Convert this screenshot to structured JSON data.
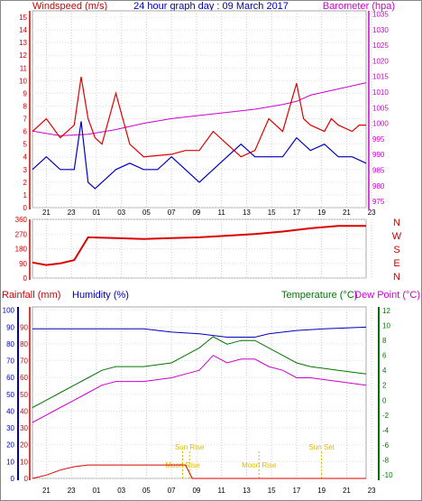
{
  "header": {
    "left_title": "Windspeed (m/s)",
    "center_title": "24 hour graph day : 09 March 2017",
    "right_title": "Barometer (hpa)"
  },
  "time_ticks": [
    "21",
    "23",
    "01",
    "03",
    "05",
    "07",
    "09",
    "11",
    "13",
    "15",
    "17",
    "19",
    "21",
    "23"
  ],
  "wind_panel": {
    "left_ticks": [
      "0",
      "1",
      "2",
      "3",
      "4",
      "5",
      "6",
      "7",
      "8",
      "9",
      "10",
      "11",
      "12",
      "13",
      "14",
      "15"
    ],
    "right_ticks": [
      "975",
      "980",
      "985",
      "990",
      "995",
      "1000",
      "1005",
      "1010",
      "1015",
      "1020",
      "1025",
      "1030",
      "1035"
    ],
    "series": [
      {
        "color": "#dd0000",
        "points": [
          [
            0,
            6
          ],
          [
            1,
            7
          ],
          [
            2,
            5.5
          ],
          [
            3,
            6.5
          ],
          [
            3.5,
            10.3
          ],
          [
            4,
            7
          ],
          [
            4.5,
            5.5
          ],
          [
            5,
            5
          ],
          [
            6,
            9
          ],
          [
            6.5,
            7
          ],
          [
            7,
            5
          ],
          [
            8,
            4
          ],
          [
            10,
            4.2
          ],
          [
            11,
            4.5
          ],
          [
            12,
            4.5
          ],
          [
            13,
            6
          ],
          [
            14,
            5
          ],
          [
            15,
            4
          ],
          [
            16,
            4.5
          ],
          [
            17,
            7
          ],
          [
            18,
            6
          ],
          [
            19,
            9.8
          ],
          [
            19.5,
            7
          ],
          [
            20,
            6.5
          ],
          [
            21,
            6
          ],
          [
            21.5,
            7
          ],
          [
            22,
            6.5
          ],
          [
            23,
            6
          ],
          [
            23.5,
            6.5
          ],
          [
            24,
            6.5
          ]
        ]
      },
      {
        "color": "#0000bb",
        "points": [
          [
            0,
            3
          ],
          [
            1,
            4
          ],
          [
            2,
            3
          ],
          [
            3,
            3
          ],
          [
            3.5,
            6.8
          ],
          [
            4,
            2
          ],
          [
            4.5,
            1.5
          ],
          [
            5,
            2
          ],
          [
            6,
            3
          ],
          [
            7,
            3.5
          ],
          [
            8,
            3
          ],
          [
            9,
            3
          ],
          [
            10,
            4
          ],
          [
            11,
            3
          ],
          [
            12,
            2
          ],
          [
            13,
            3
          ],
          [
            14,
            4
          ],
          [
            15,
            5
          ],
          [
            16,
            4
          ],
          [
            17,
            4
          ],
          [
            18,
            4
          ],
          [
            19,
            5.5
          ],
          [
            20,
            4.5
          ],
          [
            21,
            5
          ],
          [
            22,
            4
          ],
          [
            23,
            4
          ],
          [
            24,
            3.5
          ]
        ]
      }
    ],
    "barometer": {
      "color": "#cc00cc",
      "points": [
        [
          0,
          997.5
        ],
        [
          2,
          996
        ],
        [
          4,
          996.5
        ],
        [
          6,
          998
        ],
        [
          8,
          1000
        ],
        [
          10,
          1001.5
        ],
        [
          12,
          1002.5
        ],
        [
          14,
          1003.5
        ],
        [
          16,
          1004.5
        ],
        [
          18,
          1006
        ],
        [
          19,
          1007
        ],
        [
          20,
          1009
        ],
        [
          22,
          1011
        ],
        [
          24,
          1013
        ]
      ]
    }
  },
  "direction_panel": {
    "left_ticks": [
      "0",
      "90",
      "180",
      "270",
      "360"
    ],
    "compass": [
      "N",
      "W",
      "S",
      "E",
      "N"
    ],
    "series": {
      "color": "#dd0000",
      "points": [
        [
          0,
          95
        ],
        [
          1,
          80
        ],
        [
          2,
          90
        ],
        [
          3,
          110
        ],
        [
          3.5,
          180
        ],
        [
          4,
          250
        ],
        [
          6,
          245
        ],
        [
          8,
          240
        ],
        [
          10,
          245
        ],
        [
          12,
          250
        ],
        [
          14,
          260
        ],
        [
          16,
          270
        ],
        [
          18,
          285
        ],
        [
          20,
          305
        ],
        [
          22,
          320
        ],
        [
          24,
          320
        ]
      ]
    }
  },
  "climate_panel": {
    "labels": {
      "rainfall": "Rainfall (mm)",
      "humidity": "Humidity (%)",
      "temperature": "Temperature (°C)",
      "dew_point": "Dew Point (°C)"
    },
    "left_ticks": [
      "0",
      "10",
      "20",
      "30",
      "40",
      "50",
      "60",
      "70",
      "80",
      "90",
      "100"
    ],
    "right_ticks": [
      "-10",
      "-8",
      "-6",
      "-4",
      "-2",
      "0",
      "2",
      "4",
      "6",
      "8",
      "10",
      "12"
    ],
    "humidity": {
      "color": "#0000bb",
      "points": [
        [
          0,
          89
        ],
        [
          6,
          89
        ],
        [
          8,
          89
        ],
        [
          10,
          87
        ],
        [
          12,
          86
        ],
        [
          14,
          84
        ],
        [
          16,
          84
        ],
        [
          17,
          86
        ],
        [
          19,
          88
        ],
        [
          21,
          89
        ],
        [
          24,
          90
        ]
      ]
    },
    "temperature": {
      "color": "#007700",
      "points": [
        [
          0,
          -1
        ],
        [
          1,
          0
        ],
        [
          2,
          1
        ],
        [
          3,
          2
        ],
        [
          4,
          3
        ],
        [
          5,
          4
        ],
        [
          6,
          4.5
        ],
        [
          8,
          4.5
        ],
        [
          10,
          5
        ],
        [
          11,
          6
        ],
        [
          12,
          7
        ],
        [
          13,
          8.5
        ],
        [
          14,
          7.5
        ],
        [
          15,
          8
        ],
        [
          16,
          8
        ],
        [
          17,
          7
        ],
        [
          18,
          6
        ],
        [
          19,
          5
        ],
        [
          20,
          4.5
        ],
        [
          22,
          4
        ],
        [
          24,
          3.5
        ]
      ]
    },
    "dew_point": {
      "color": "#cc00cc",
      "points": [
        [
          0,
          -3
        ],
        [
          1,
          -2
        ],
        [
          2,
          -1
        ],
        [
          3,
          0
        ],
        [
          4,
          1
        ],
        [
          5,
          2
        ],
        [
          6,
          2.5
        ],
        [
          8,
          2.5
        ],
        [
          10,
          3
        ],
        [
          11,
          3.5
        ],
        [
          12,
          4
        ],
        [
          13,
          6
        ],
        [
          14,
          5
        ],
        [
          15,
          5.5
        ],
        [
          16,
          5.5
        ],
        [
          17,
          4.5
        ],
        [
          18,
          4
        ],
        [
          19,
          3
        ],
        [
          20,
          3
        ],
        [
          22,
          2.5
        ],
        [
          24,
          2
        ]
      ]
    },
    "rainfall": {
      "color": "#dd0000",
      "points": [
        [
          0,
          0
        ],
        [
          1,
          2
        ],
        [
          2,
          5
        ],
        [
          3,
          7
        ],
        [
          4,
          8
        ],
        [
          5,
          8
        ],
        [
          6,
          8
        ],
        [
          8,
          8
        ],
        [
          10,
          8
        ],
        [
          11,
          8
        ],
        [
          11.5,
          0
        ],
        [
          24,
          0
        ]
      ]
    },
    "events": [
      {
        "label": "Moon Rise",
        "x": 10.8
      },
      {
        "label": "Sun Rise",
        "x": 11.3
      },
      {
        "label": "Moon Rise",
        "x": 16.3
      },
      {
        "label": "Sun Set",
        "x": 20.8
      }
    ]
  }
}
